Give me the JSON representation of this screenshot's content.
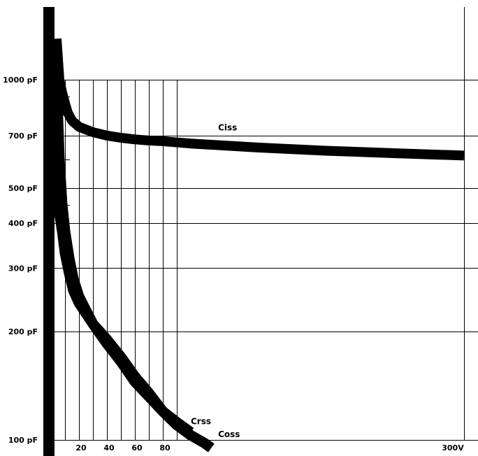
{
  "chart_data": {
    "type": "line",
    "title": "",
    "xlabel": "",
    "ylabel": "",
    "y_scale": "log",
    "ylim": [
      100,
      1300
    ],
    "grid": true,
    "y_ticks": [
      {
        "value": 1000,
        "label": "1000 pF"
      },
      {
        "value": 700,
        "label": "700 pF"
      },
      {
        "value": 500,
        "label": "500 pF"
      },
      {
        "value": 400,
        "label": "400 pF"
      },
      {
        "value": 300,
        "label": "300 pF"
      },
      {
        "value": 200,
        "label": "200 pF"
      },
      {
        "value": 100,
        "label": "100 pF"
      }
    ],
    "x_ticks": [
      {
        "value": 20,
        "label": "20"
      },
      {
        "value": 40,
        "label": "40"
      },
      {
        "value": 60,
        "label": "60"
      },
      {
        "value": 80,
        "label": "80"
      },
      {
        "value": 300,
        "label": "300V"
      }
    ],
    "series": [
      {
        "name": "Ciss",
        "x": [
          4,
          6,
          8,
          10,
          12,
          15,
          20,
          30,
          40,
          50,
          60,
          70,
          80,
          100,
          150,
          200,
          250,
          300
        ],
        "values": [
          1300,
          1000,
          920,
          860,
          810,
          770,
          740,
          715,
          700,
          690,
          683,
          678,
          675,
          665,
          648,
          635,
          625,
          616
        ]
      },
      {
        "name": "Crss",
        "x": [
          3,
          5,
          8,
          10,
          13,
          16,
          20,
          30,
          40,
          50,
          60,
          70,
          80,
          90,
          100
        ],
        "values": [
          600,
          450,
          380,
          330,
          290,
          260,
          240,
          210,
          190,
          170,
          150,
          135,
          120,
          112,
          105
        ]
      },
      {
        "name": "Coss",
        "x": [
          4,
          6,
          8,
          10,
          13,
          16,
          20,
          30,
          40,
          50,
          60,
          70,
          80,
          90,
          100,
          110,
          115
        ],
        "values": [
          1000,
          600,
          450,
          380,
          320,
          280,
          250,
          210,
          185,
          165,
          145,
          132,
          120,
          110,
          103,
          98,
          95
        ]
      }
    ],
    "annotations": [
      {
        "text": "Ciss",
        "x": 120,
        "y": 740
      },
      {
        "text": "Crss",
        "x": 100,
        "y": 113
      },
      {
        "text": "Coss",
        "x": 120,
        "y": 104
      }
    ]
  }
}
